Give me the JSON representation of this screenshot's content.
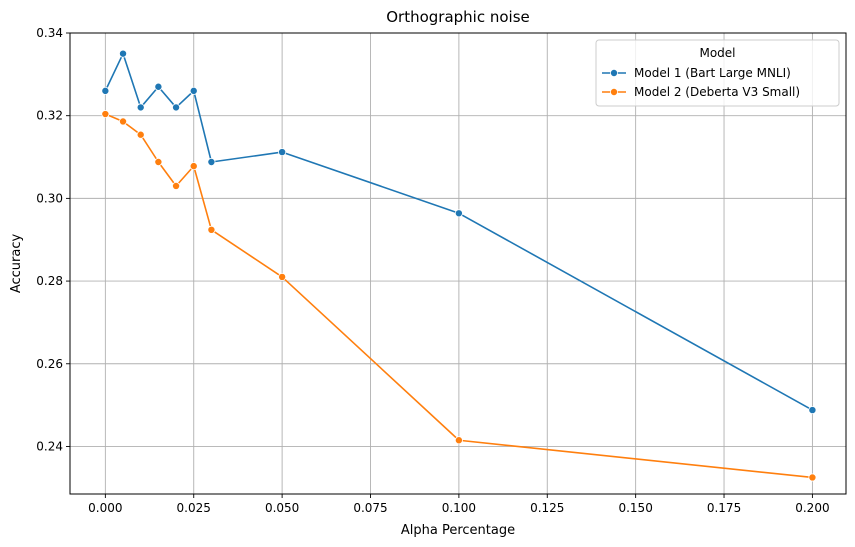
{
  "chart_data": {
    "type": "line",
    "title": "Orthographic noise",
    "xlabel": "Alpha Percentage",
    "ylabel": "Accuracy",
    "xlim": [
      -0.01,
      0.2095
    ],
    "ylim": [
      0.2285,
      0.34
    ],
    "x_ticks": [
      0.0,
      0.025,
      0.05,
      0.075,
      0.1,
      0.125,
      0.15,
      0.175,
      0.2
    ],
    "x_tick_labels": [
      "0.000",
      "0.025",
      "0.050",
      "0.075",
      "0.100",
      "0.125",
      "0.150",
      "0.175",
      "0.200"
    ],
    "y_ticks": [
      0.24,
      0.26,
      0.28,
      0.3,
      0.32,
      0.34
    ],
    "y_tick_labels": [
      "0.24",
      "0.26",
      "0.28",
      "0.30",
      "0.32",
      "0.34"
    ],
    "grid": true,
    "legend": {
      "title": "Model",
      "placement": "top-right"
    },
    "x": [
      0.0,
      0.005,
      0.01,
      0.015,
      0.02,
      0.025,
      0.03,
      0.05,
      0.1,
      0.2
    ],
    "series": [
      {
        "name": "Model 1 (Bart Large MNLI)",
        "color": "#1f77b4",
        "values": [
          0.326,
          0.335,
          0.322,
          0.327,
          0.322,
          0.326,
          0.3088,
          0.3112,
          0.2964,
          0.2488
        ]
      },
      {
        "name": "Model 2 (Deberta V3 Small)",
        "color": "#ff7f0e",
        "values": [
          0.3204,
          0.3186,
          0.3154,
          0.3088,
          0.303,
          0.3078,
          0.2924,
          0.281,
          0.2415,
          0.2325
        ]
      }
    ]
  }
}
